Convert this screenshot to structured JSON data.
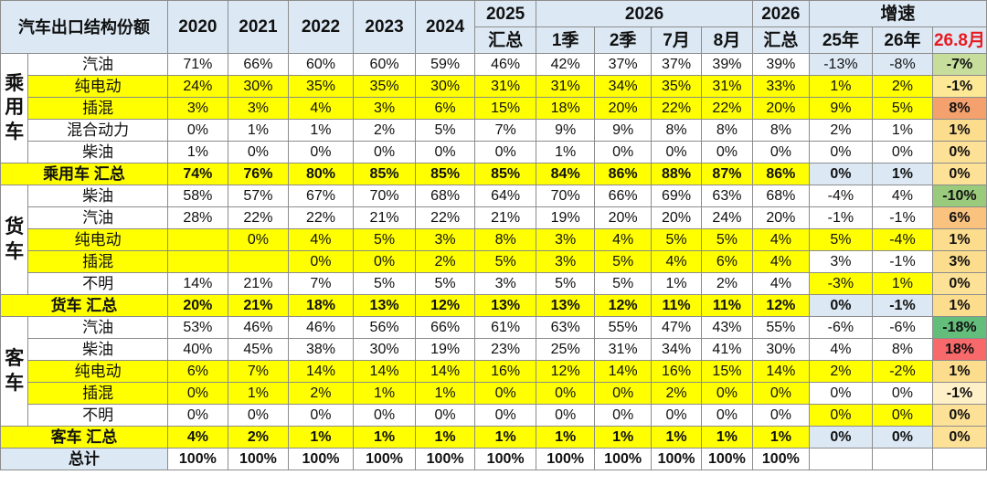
{
  "header": {
    "title": "汽车出口结构份额",
    "y2020": "2020",
    "y2021": "2021",
    "y2022": "2022",
    "y2023": "2023",
    "y2024": "2024",
    "y2025a": "2025",
    "y2025b": "汇总",
    "y2026": "2026",
    "q1": "1季",
    "q2": "2季",
    "m7": "7月",
    "m8": "8月",
    "s2026a": "2026",
    "s2026b": "汇总",
    "growth": "增速",
    "g25": "25年",
    "g26": "26年",
    "g268": "26.8月"
  },
  "groups": {
    "passenger": "乘用车",
    "truck": "货车",
    "bus": "客车"
  },
  "rows": [
    {
      "label": "汽油",
      "v": [
        "71%",
        "66%",
        "60%",
        "60%",
        "59%",
        "46%",
        "42%",
        "37%",
        "37%",
        "39%",
        "39%",
        "-13%",
        "-8%",
        "-7%"
      ]
    },
    {
      "label": "纯电动",
      "v": [
        "24%",
        "30%",
        "35%",
        "35%",
        "30%",
        "31%",
        "31%",
        "34%",
        "35%",
        "31%",
        "33%",
        "1%",
        "2%",
        "-1%"
      ]
    },
    {
      "label": "插混",
      "v": [
        "3%",
        "3%",
        "4%",
        "3%",
        "6%",
        "15%",
        "18%",
        "20%",
        "22%",
        "22%",
        "20%",
        "9%",
        "5%",
        "8%"
      ]
    },
    {
      "label": "混合动力",
      "v": [
        "0%",
        "1%",
        "1%",
        "2%",
        "5%",
        "7%",
        "9%",
        "9%",
        "8%",
        "8%",
        "8%",
        "2%",
        "1%",
        "1%"
      ]
    },
    {
      "label": "柴油",
      "v": [
        "1%",
        "0%",
        "0%",
        "0%",
        "0%",
        "0%",
        "1%",
        "0%",
        "0%",
        "0%",
        "0%",
        "0%",
        "0%",
        "0%"
      ]
    },
    {
      "label": "乘用车 汇总",
      "v": [
        "74%",
        "76%",
        "80%",
        "85%",
        "85%",
        "85%",
        "84%",
        "86%",
        "88%",
        "87%",
        "86%",
        "0%",
        "1%",
        "0%"
      ]
    },
    {
      "label": "柴油",
      "v": [
        "58%",
        "57%",
        "67%",
        "70%",
        "68%",
        "64%",
        "70%",
        "66%",
        "69%",
        "63%",
        "68%",
        "-4%",
        "4%",
        "-10%"
      ]
    },
    {
      "label": "汽油",
      "v": [
        "28%",
        "22%",
        "22%",
        "21%",
        "22%",
        "21%",
        "19%",
        "20%",
        "20%",
        "24%",
        "20%",
        "-1%",
        "-1%",
        "6%"
      ]
    },
    {
      "label": "纯电动",
      "v": [
        "",
        "0%",
        "4%",
        "5%",
        "3%",
        "8%",
        "3%",
        "4%",
        "5%",
        "5%",
        "4%",
        "5%",
        "-4%",
        "1%"
      ]
    },
    {
      "label": "插混",
      "v": [
        "",
        "",
        "0%",
        "0%",
        "2%",
        "5%",
        "3%",
        "5%",
        "4%",
        "6%",
        "4%",
        "3%",
        "-1%",
        "3%"
      ]
    },
    {
      "label": "不明",
      "v": [
        "14%",
        "21%",
        "7%",
        "5%",
        "5%",
        "3%",
        "5%",
        "5%",
        "1%",
        "2%",
        "4%",
        "-3%",
        "1%",
        "0%"
      ]
    },
    {
      "label": "货车 汇总",
      "v": [
        "20%",
        "21%",
        "18%",
        "13%",
        "12%",
        "13%",
        "13%",
        "12%",
        "11%",
        "11%",
        "12%",
        "0%",
        "-1%",
        "1%"
      ]
    },
    {
      "label": "汽油",
      "v": [
        "53%",
        "46%",
        "46%",
        "56%",
        "66%",
        "61%",
        "63%",
        "55%",
        "47%",
        "43%",
        "55%",
        "-6%",
        "-6%",
        "-18%"
      ]
    },
    {
      "label": "柴油",
      "v": [
        "40%",
        "45%",
        "38%",
        "30%",
        "19%",
        "23%",
        "25%",
        "31%",
        "34%",
        "41%",
        "30%",
        "4%",
        "8%",
        "18%"
      ]
    },
    {
      "label": "纯电动",
      "v": [
        "6%",
        "7%",
        "14%",
        "14%",
        "14%",
        "16%",
        "12%",
        "14%",
        "16%",
        "15%",
        "14%",
        "2%",
        "-2%",
        "1%"
      ]
    },
    {
      "label": "插混",
      "v": [
        "0%",
        "1%",
        "2%",
        "1%",
        "1%",
        "0%",
        "0%",
        "0%",
        "2%",
        "0%",
        "0%",
        "0%",
        "0%",
        "-1%"
      ]
    },
    {
      "label": "不明",
      "v": [
        "0%",
        "0%",
        "0%",
        "0%",
        "0%",
        "0%",
        "0%",
        "0%",
        "0%",
        "0%",
        "0%",
        "0%",
        "0%",
        "0%"
      ]
    },
    {
      "label": "客车 汇总",
      "v": [
        "4%",
        "2%",
        "1%",
        "1%",
        "1%",
        "1%",
        "1%",
        "1%",
        "1%",
        "1%",
        "1%",
        "0%",
        "0%",
        "0%"
      ]
    },
    {
      "label": "总计",
      "v": [
        "100%",
        "100%",
        "100%",
        "100%",
        "100%",
        "100%",
        "100%",
        "100%",
        "100%",
        "100%",
        "100%",
        "",
        "",
        ""
      ]
    }
  ],
  "colors": {
    "header_bg": "#dce9f5",
    "highlight_yellow": "#ffff00",
    "header_red_text": "#e8191f",
    "heat_green_strong": "#63be7b",
    "heat_red": "#f8696b",
    "heat_orange": "#f4a16d"
  }
}
